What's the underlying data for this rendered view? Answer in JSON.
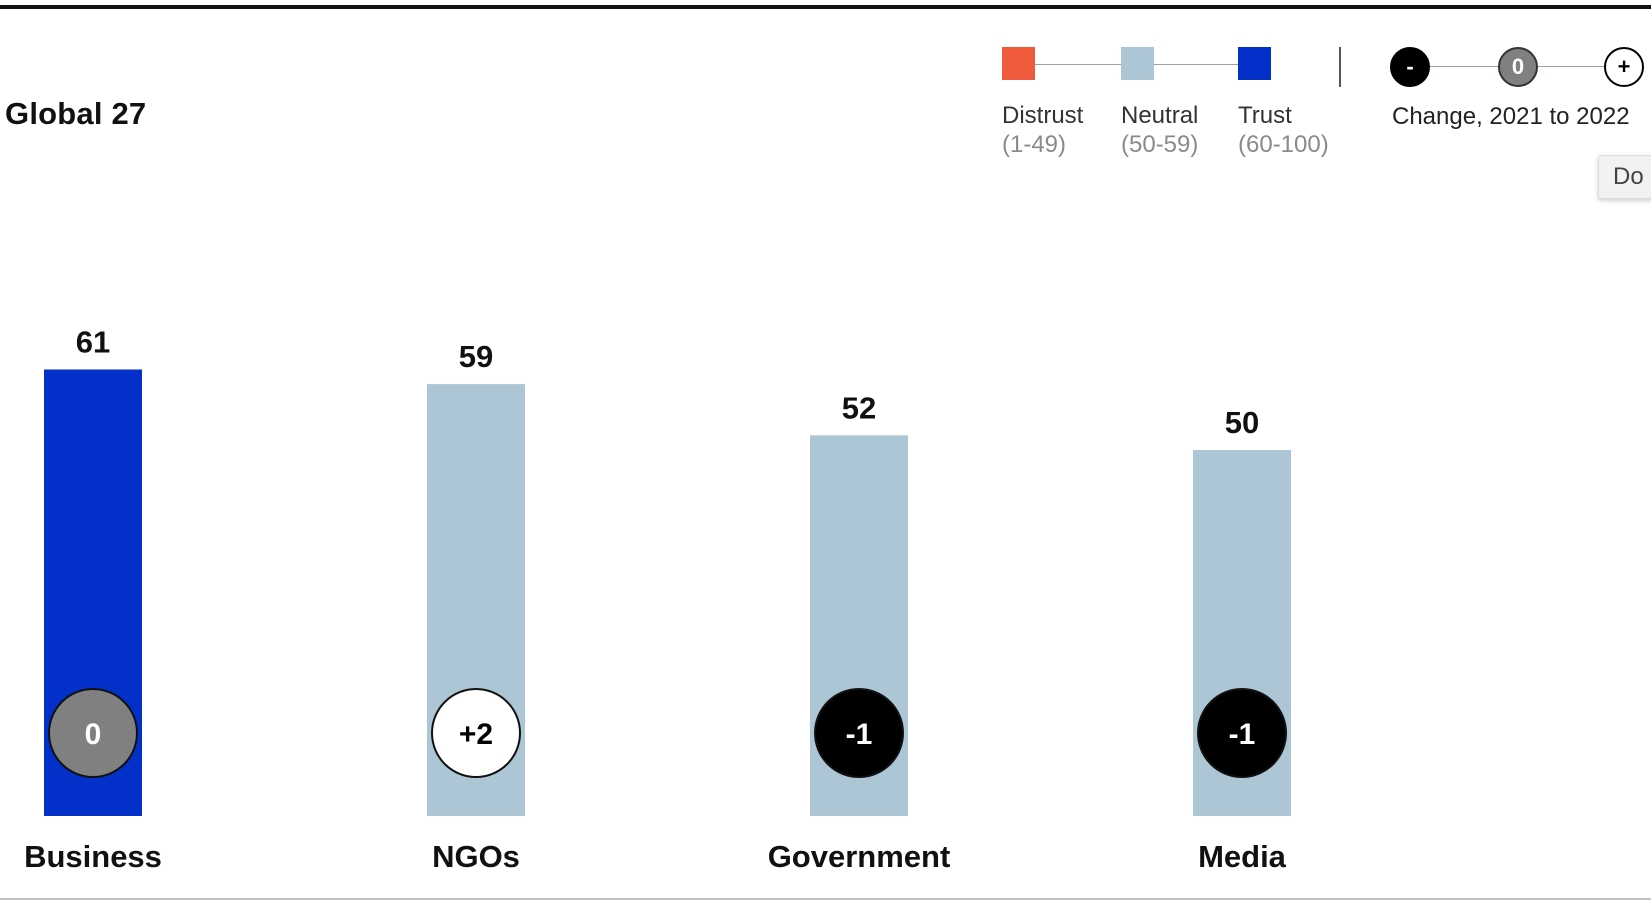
{
  "header": {
    "title": "Global 27"
  },
  "legend": {
    "trust_scale": [
      {
        "label": "Distrust",
        "range": "(1-49)",
        "color": "#f05a3c"
      },
      {
        "label": "Neutral",
        "range": "(50-59)",
        "color": "#adc6d5"
      },
      {
        "label": "Trust",
        "range": "(60-100)",
        "color": "#0330c8"
      }
    ],
    "change_scale": {
      "label": "Change, 2021 to 2022",
      "markers": [
        {
          "symbol": "-",
          "meaning": "decrease",
          "fill": "#000000",
          "text_color": "#ffffff"
        },
        {
          "symbol": "0",
          "meaning": "no change",
          "fill": "#808080",
          "text_color": "#ffffff"
        },
        {
          "symbol": "+",
          "meaning": "increase",
          "fill": "#ffffff",
          "text_color": "#000000"
        }
      ]
    }
  },
  "download_button": {
    "label": "Do"
  },
  "chart_data": {
    "type": "bar",
    "categories": [
      "Business",
      "NGOs",
      "Government",
      "Media"
    ],
    "values": [
      61,
      59,
      52,
      50
    ],
    "changes": [
      "0",
      "+2",
      "-1",
      "-1"
    ],
    "change_colors": {
      "0": {
        "fill": "#808080",
        "text": "#ffffff"
      },
      "+2": {
        "fill": "#ffffff",
        "text": "#000000"
      },
      "-1": {
        "fill": "#000000",
        "text": "#ffffff"
      }
    },
    "bar_colors": [
      "#0330c8",
      "#adc6d5",
      "#adc6d5",
      "#adc6d5"
    ],
    "title": "",
    "xlabel": "",
    "ylabel": "",
    "grid": false,
    "legend": "top-right"
  }
}
